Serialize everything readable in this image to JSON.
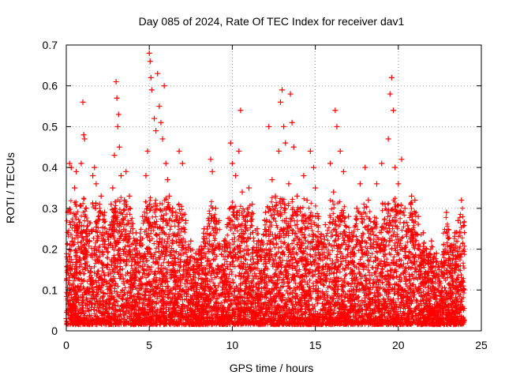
{
  "chart_data": {
    "type": "scatter",
    "title": "Day 085 of 2024, Rate Of TEC Index for receiver dav1",
    "xlabel": "GPS time / hours",
    "ylabel": "ROTI / TECUs",
    "xlim": [
      0,
      25
    ],
    "ylim": [
      0,
      0.7
    ],
    "xticks": [
      0,
      5,
      10,
      15,
      20,
      25
    ],
    "yticks": [
      0,
      0.1,
      0.2,
      0.3,
      0.4,
      0.5,
      0.6,
      0.7
    ],
    "xtick_labels": [
      "0",
      "5",
      "10",
      "15",
      "20",
      "25"
    ],
    "ytick_labels": [
      "0",
      "0.1",
      "0.2",
      "0.3",
      "0.4",
      "0.5",
      "0.6",
      "0.7"
    ],
    "grid": true,
    "marker": "plus",
    "series": [
      {
        "name": "ROTI",
        "color": "#ff0000",
        "points": [
          [
            0.0,
            0.03
          ],
          [
            0.1,
            0.29
          ],
          [
            0.2,
            0.41
          ],
          [
            0.25,
            0.26
          ],
          [
            0.3,
            0.4
          ],
          [
            0.5,
            0.35
          ],
          [
            0.6,
            0.39
          ],
          [
            0.7,
            0.24
          ],
          [
            0.9,
            0.41
          ],
          [
            1.0,
            0.56
          ],
          [
            1.05,
            0.48
          ],
          [
            1.1,
            0.47
          ],
          [
            1.2,
            0.3
          ],
          [
            1.4,
            0.22
          ],
          [
            1.6,
            0.38
          ],
          [
            1.7,
            0.4
          ],
          [
            1.8,
            0.36
          ],
          [
            2.0,
            0.31
          ],
          [
            2.1,
            0.33
          ],
          [
            2.2,
            0.22
          ],
          [
            2.3,
            0.29
          ],
          [
            2.5,
            0.23
          ],
          [
            2.7,
            0.31
          ],
          [
            2.8,
            0.35
          ],
          [
            2.9,
            0.43
          ],
          [
            3.0,
            0.61
          ],
          [
            3.05,
            0.57
          ],
          [
            3.1,
            0.5
          ],
          [
            3.15,
            0.53
          ],
          [
            3.2,
            0.45
          ],
          [
            3.3,
            0.38
          ],
          [
            3.5,
            0.32
          ],
          [
            3.6,
            0.39
          ],
          [
            3.8,
            0.33
          ],
          [
            4.0,
            0.25
          ],
          [
            4.2,
            0.24
          ],
          [
            4.4,
            0.19
          ],
          [
            4.6,
            0.28
          ],
          [
            4.8,
            0.38
          ],
          [
            4.9,
            0.44
          ],
          [
            5.0,
            0.68
          ],
          [
            5.05,
            0.66
          ],
          [
            5.1,
            0.62
          ],
          [
            5.15,
            0.59
          ],
          [
            5.3,
            0.52
          ],
          [
            5.4,
            0.49
          ],
          [
            5.5,
            0.63
          ],
          [
            5.6,
            0.55
          ],
          [
            5.7,
            0.51
          ],
          [
            5.8,
            0.47
          ],
          [
            5.9,
            0.6
          ],
          [
            6.0,
            0.41
          ],
          [
            6.1,
            0.37
          ],
          [
            6.2,
            0.33
          ],
          [
            6.4,
            0.3
          ],
          [
            6.6,
            0.29
          ],
          [
            6.8,
            0.44
          ],
          [
            7.0,
            0.41
          ],
          [
            7.2,
            0.27
          ],
          [
            7.5,
            0.22
          ],
          [
            7.8,
            0.19
          ],
          [
            8.0,
            0.2
          ],
          [
            8.3,
            0.25
          ],
          [
            8.5,
            0.17
          ],
          [
            8.7,
            0.42
          ],
          [
            8.8,
            0.39
          ],
          [
            9.0,
            0.3
          ],
          [
            9.2,
            0.27
          ],
          [
            9.5,
            0.22
          ],
          [
            9.7,
            0.26
          ],
          [
            9.9,
            0.46
          ],
          [
            10.0,
            0.41
          ],
          [
            10.2,
            0.38
          ],
          [
            10.4,
            0.44
          ],
          [
            10.5,
            0.54
          ],
          [
            10.6,
            0.34
          ],
          [
            10.8,
            0.28
          ],
          [
            11.0,
            0.35
          ],
          [
            11.2,
            0.31
          ],
          [
            11.5,
            0.25
          ],
          [
            11.7,
            0.21
          ],
          [
            12.0,
            0.29
          ],
          [
            12.2,
            0.5
          ],
          [
            12.4,
            0.37
          ],
          [
            12.6,
            0.33
          ],
          [
            12.8,
            0.44
          ],
          [
            12.9,
            0.56
          ],
          [
            13.0,
            0.59
          ],
          [
            13.1,
            0.5
          ],
          [
            13.2,
            0.46
          ],
          [
            13.4,
            0.36
          ],
          [
            13.5,
            0.58
          ],
          [
            13.6,
            0.51
          ],
          [
            13.7,
            0.45
          ],
          [
            13.9,
            0.33
          ],
          [
            14.1,
            0.3
          ],
          [
            14.3,
            0.38
          ],
          [
            14.5,
            0.32
          ],
          [
            14.7,
            0.44
          ],
          [
            14.9,
            0.4
          ],
          [
            15.0,
            0.35
          ],
          [
            15.2,
            0.28
          ],
          [
            15.4,
            0.2
          ],
          [
            15.6,
            0.26
          ],
          [
            15.9,
            0.41
          ],
          [
            16.1,
            0.34
          ],
          [
            16.2,
            0.54
          ],
          [
            16.3,
            0.5
          ],
          [
            16.5,
            0.44
          ],
          [
            16.7,
            0.39
          ],
          [
            17.0,
            0.28
          ],
          [
            17.2,
            0.24
          ],
          [
            17.5,
            0.3
          ],
          [
            17.7,
            0.36
          ],
          [
            18.0,
            0.4
          ],
          [
            18.2,
            0.32
          ],
          [
            18.4,
            0.25
          ],
          [
            18.7,
            0.36
          ],
          [
            19.0,
            0.41
          ],
          [
            19.2,
            0.31
          ],
          [
            19.4,
            0.47
          ],
          [
            19.5,
            0.58
          ],
          [
            19.6,
            0.62
          ],
          [
            19.7,
            0.54
          ],
          [
            19.8,
            0.4
          ],
          [
            20.0,
            0.36
          ],
          [
            20.2,
            0.42
          ],
          [
            20.4,
            0.3
          ],
          [
            20.6,
            0.25
          ],
          [
            20.8,
            0.33
          ],
          [
            21.0,
            0.32
          ],
          [
            21.2,
            0.28
          ],
          [
            21.5,
            0.24
          ],
          [
            21.7,
            0.2
          ],
          [
            22.0,
            0.22
          ],
          [
            22.3,
            0.19
          ],
          [
            22.6,
            0.17
          ],
          [
            22.9,
            0.29
          ],
          [
            23.0,
            0.16
          ],
          [
            23.2,
            0.21
          ],
          [
            23.4,
            0.24
          ],
          [
            23.6,
            0.27
          ],
          [
            23.8,
            0.32
          ],
          [
            23.9,
            0.11
          ],
          [
            0.3,
            0.05
          ],
          [
            1.5,
            0.08
          ],
          [
            2.4,
            0.12
          ],
          [
            3.4,
            0.06
          ],
          [
            4.3,
            0.09
          ],
          [
            5.2,
            0.07
          ],
          [
            6.3,
            0.1
          ],
          [
            7.3,
            0.05
          ],
          [
            8.2,
            0.06
          ],
          [
            9.1,
            0.04
          ],
          [
            10.3,
            0.08
          ],
          [
            11.3,
            0.05
          ],
          [
            12.3,
            0.09
          ],
          [
            13.3,
            0.07
          ],
          [
            14.2,
            0.06
          ],
          [
            15.3,
            0.04
          ],
          [
            16.4,
            0.08
          ],
          [
            17.4,
            0.05
          ],
          [
            18.3,
            0.07
          ],
          [
            19.3,
            0.06
          ],
          [
            20.3,
            0.09
          ],
          [
            21.3,
            0.05
          ],
          [
            22.4,
            0.04
          ],
          [
            23.3,
            0.03
          ]
        ]
      }
    ]
  }
}
